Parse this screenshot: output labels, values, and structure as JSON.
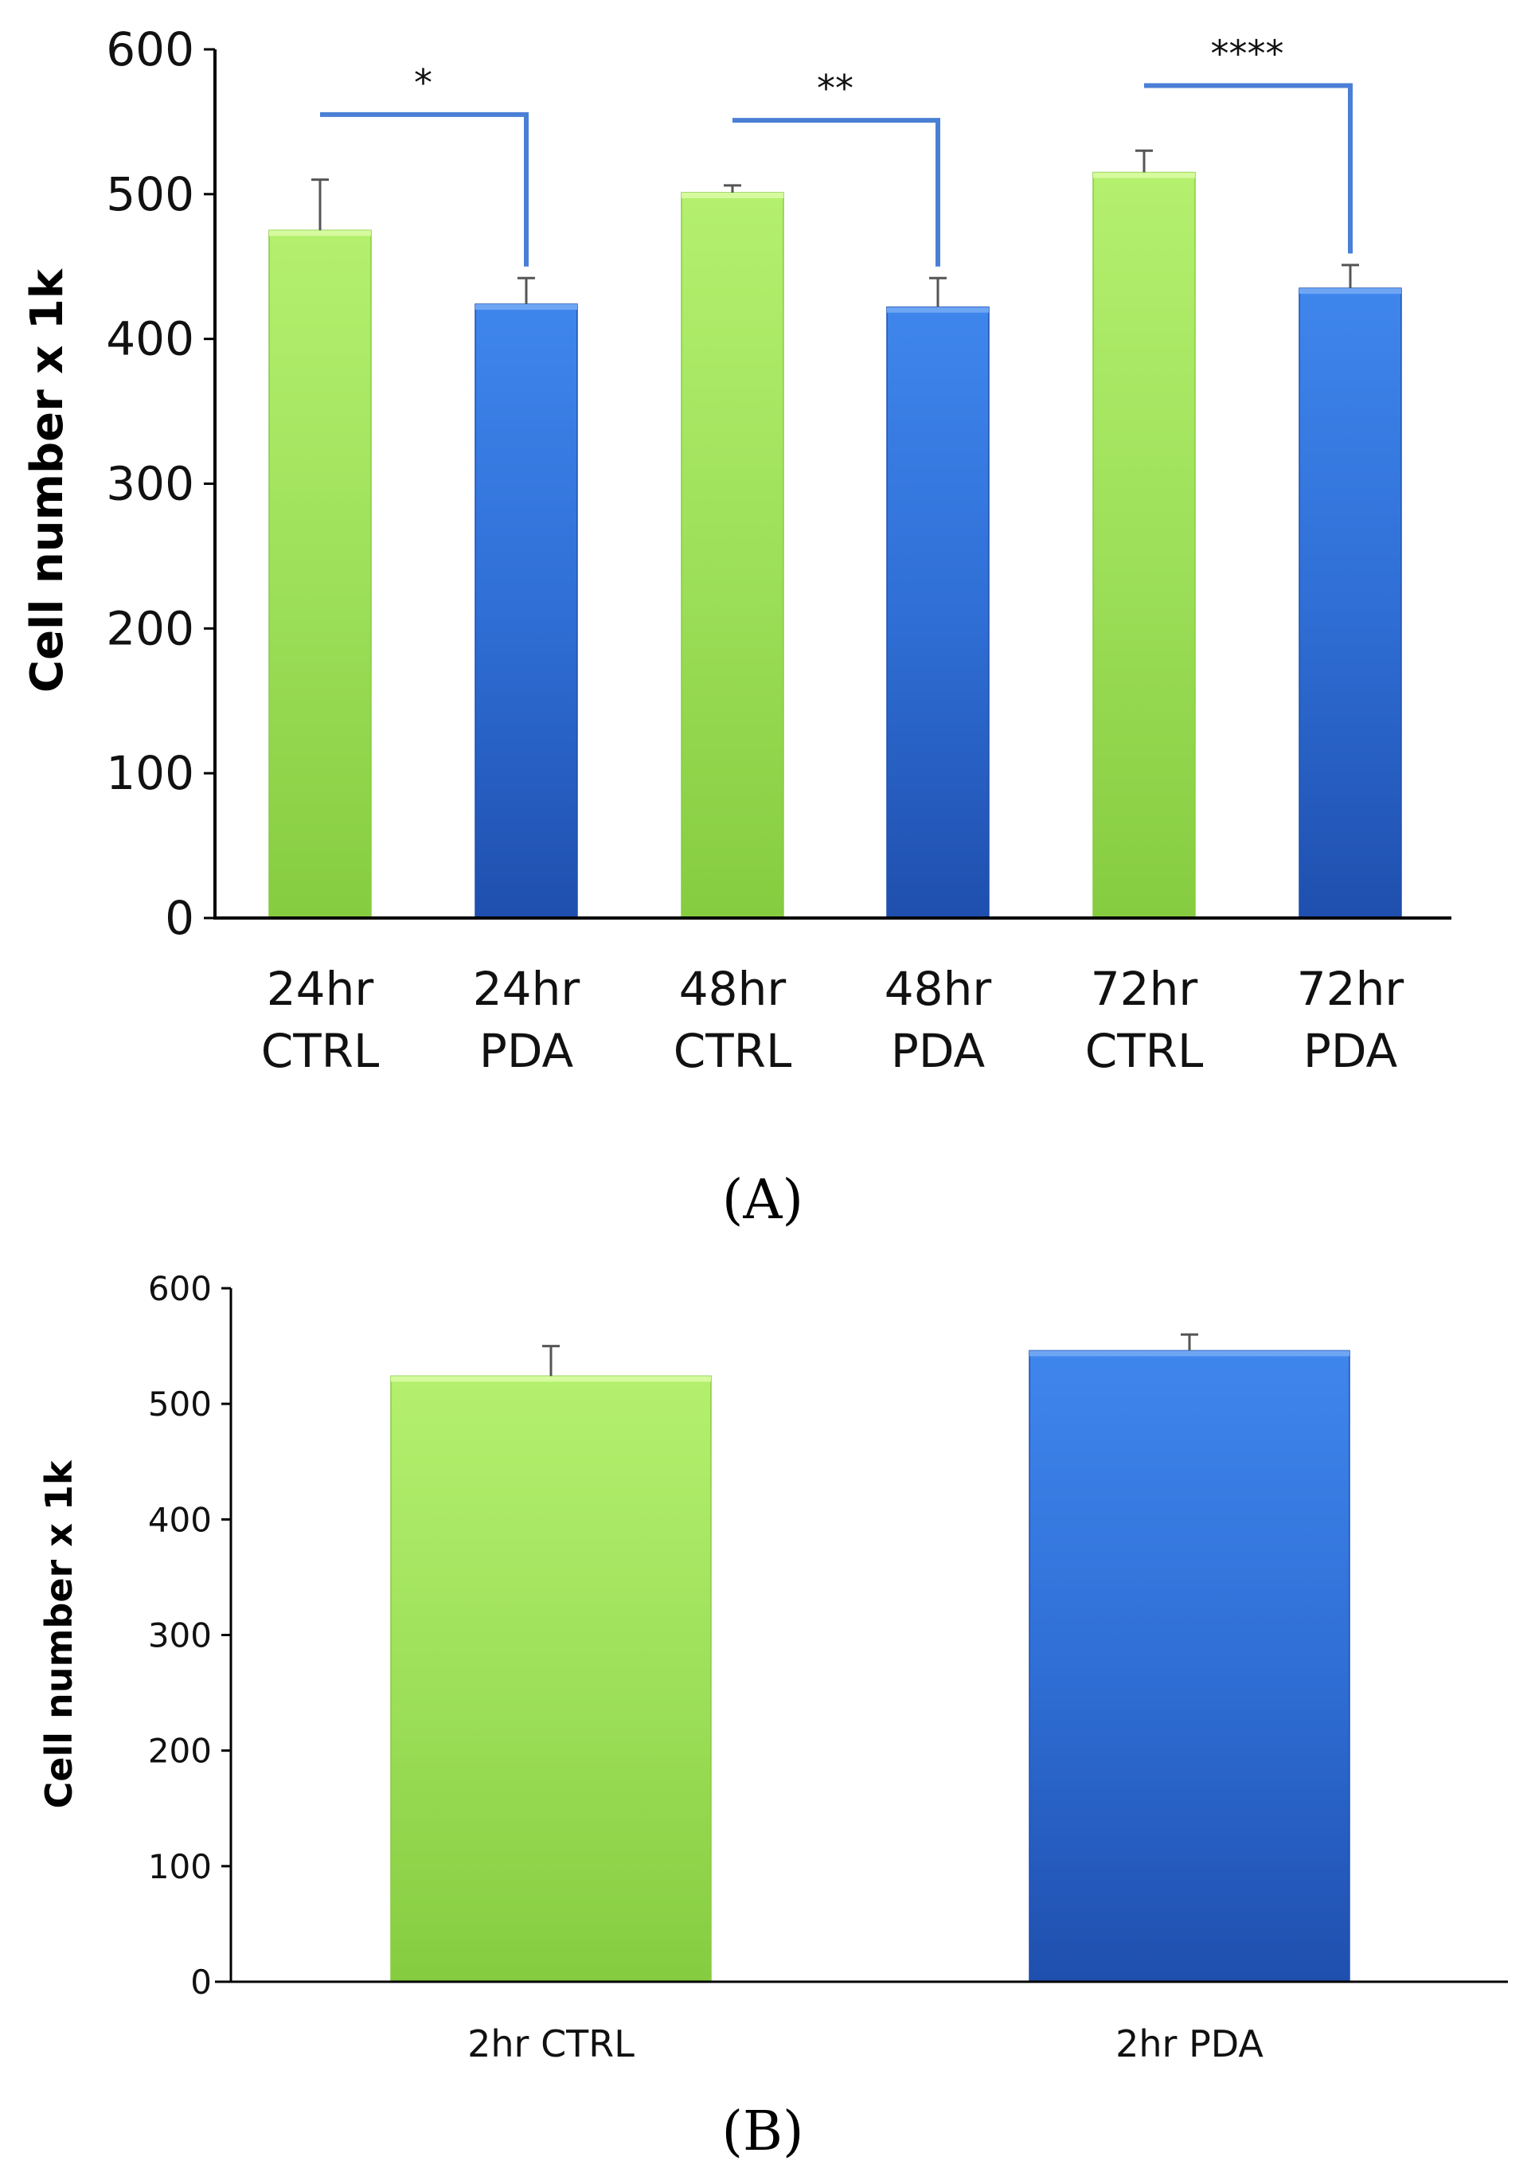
{
  "chart_data": [
    {
      "type": "bar",
      "panel_label": "(A)",
      "ylabel": "Cell number x 1k",
      "ylim": [
        0,
        600
      ],
      "yticks": [
        "0",
        "100",
        "200",
        "300",
        "400",
        "500",
        "600"
      ],
      "grid": false,
      "categories": [
        {
          "line1": "24hr",
          "line2": "CTRL",
          "group": "CTRL"
        },
        {
          "line1": "24hr",
          "line2": "PDA",
          "group": "PDA"
        },
        {
          "line1": "48hr",
          "line2": "CTRL",
          "group": "CTRL"
        },
        {
          "line1": "48hr",
          "line2": "PDA",
          "group": "PDA"
        },
        {
          "line1": "72hr",
          "line2": "CTRL",
          "group": "CTRL"
        },
        {
          "line1": "72hr",
          "line2": "PDA",
          "group": "PDA"
        }
      ],
      "values": [
        475,
        424,
        501,
        422,
        515,
        435
      ],
      "errors": [
        35,
        18,
        5,
        20,
        15,
        16
      ],
      "significance": [
        {
          "from": 0,
          "to": 1,
          "label": "*"
        },
        {
          "from": 2,
          "to": 3,
          "label": "**"
        },
        {
          "from": 4,
          "to": 5,
          "label": "****"
        }
      ]
    },
    {
      "type": "bar",
      "panel_label": "(B)",
      "ylabel": "Cell number x 1k",
      "ylim": [
        0,
        600
      ],
      "yticks": [
        "0",
        "100",
        "200",
        "300",
        "400",
        "500",
        "600"
      ],
      "grid": false,
      "categories": [
        {
          "label": "2hr CTRL",
          "group": "CTRL"
        },
        {
          "label": "2hr PDA",
          "group": "PDA"
        }
      ],
      "values": [
        524,
        546
      ],
      "errors": [
        26,
        14
      ]
    }
  ],
  "colors": {
    "ctrl_light": "#b4f06e",
    "ctrl_mid": "#9ee05a",
    "ctrl_dark": "#86cc40",
    "pda_light": "#3f86ec",
    "pda_mid": "#2f6fd6",
    "pda_dark": "#1f4fae",
    "bracket": "#4a7fd6",
    "axis": "#000000",
    "error_bar": "#555555"
  }
}
